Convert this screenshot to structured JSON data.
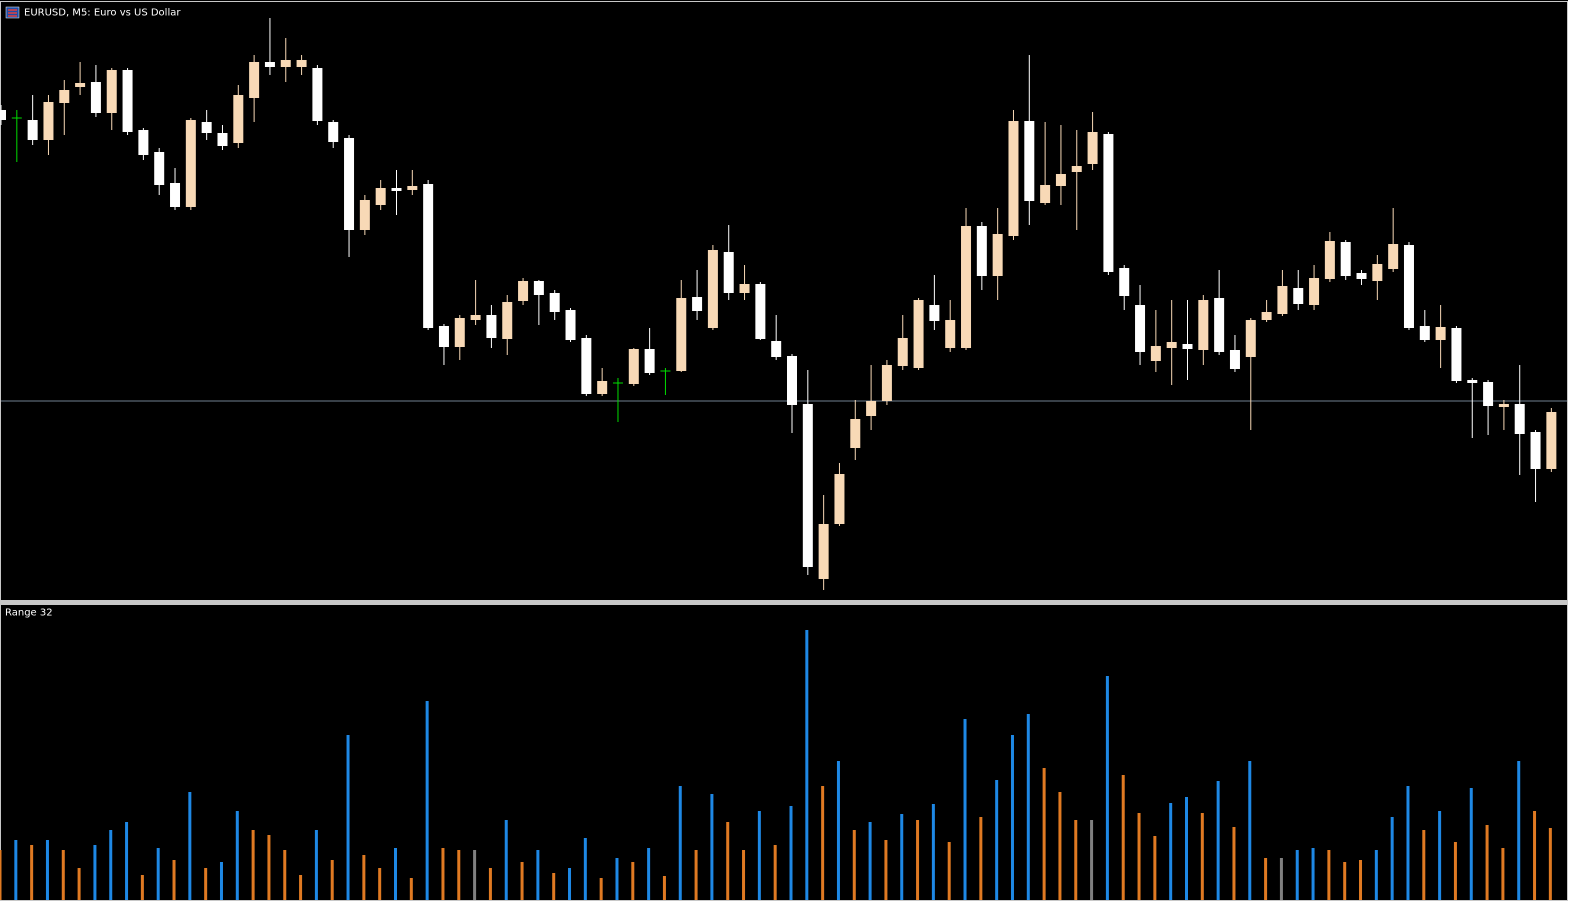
{
  "chart_data": [
    {
      "type": "candlestick",
      "title": "EURUSD, M5:  Euro vs US Dollar",
      "ylim": [
        0,
        600
      ],
      "price_line": 199,
      "bull_color": "#f8d9b6",
      "bear_color": "#ffffff",
      "doji_color": "#00dd00",
      "price_line_color": "#6f7f8f",
      "ohlc": [
        [
          490,
          495,
          475,
          480
        ],
        [
          482,
          490,
          438,
          482
        ],
        [
          480,
          505,
          455,
          460
        ],
        [
          460,
          505,
          445,
          498
        ],
        [
          497,
          520,
          465,
          510
        ],
        [
          513,
          538,
          505,
          517
        ],
        [
          518,
          535,
          483,
          487
        ],
        [
          487,
          532,
          470,
          530
        ],
        [
          530,
          532,
          465,
          468
        ],
        [
          470,
          472,
          440,
          445
        ],
        [
          448,
          452,
          405,
          415
        ],
        [
          417,
          432,
          390,
          393
        ],
        [
          393,
          482,
          390,
          480
        ],
        [
          478,
          490,
          460,
          467
        ],
        [
          467,
          475,
          450,
          454
        ],
        [
          457,
          515,
          452,
          505
        ],
        [
          502,
          545,
          478,
          538
        ],
        [
          538,
          582,
          525,
          533
        ],
        [
          533,
          562,
          518,
          540
        ],
        [
          533,
          545,
          525,
          540
        ],
        [
          532,
          535,
          475,
          479
        ],
        [
          478,
          480,
          452,
          458
        ],
        [
          462,
          465,
          343,
          370
        ],
        [
          370,
          405,
          365,
          400
        ],
        [
          395,
          420,
          390,
          412
        ],
        [
          412,
          430,
          385,
          409
        ],
        [
          410,
          430,
          405,
          414
        ],
        [
          416,
          420,
          270,
          272
        ],
        [
          274,
          276,
          235,
          253
        ],
        [
          253,
          285,
          240,
          282
        ],
        [
          280,
          320,
          275,
          285
        ],
        [
          285,
          295,
          252,
          262
        ],
        [
          261,
          305,
          245,
          298
        ],
        [
          299,
          322,
          295,
          319
        ],
        [
          319,
          320,
          275,
          305
        ],
        [
          307,
          310,
          280,
          288
        ],
        [
          290,
          292,
          258,
          260
        ],
        [
          262,
          265,
          204,
          206
        ],
        [
          206,
          232,
          204,
          219
        ],
        [
          217,
          222,
          178,
          217
        ],
        [
          216,
          252,
          214,
          251
        ],
        [
          251,
          272,
          225,
          227
        ],
        [
          229,
          232,
          205,
          229
        ],
        [
          229,
          320,
          228,
          302
        ],
        [
          303,
          330,
          280,
          289
        ],
        [
          272,
          355,
          270,
          350
        ],
        [
          348,
          375,
          300,
          307
        ],
        [
          307,
          335,
          300,
          316
        ],
        [
          316,
          318,
          260,
          261
        ],
        [
          259,
          285,
          240,
          243
        ],
        [
          244,
          246,
          167,
          195
        ],
        [
          196,
          230,
          25,
          33
        ],
        [
          21,
          105,
          10,
          76
        ],
        [
          76,
          137,
          74,
          126
        ],
        [
          152,
          200,
          140,
          181
        ],
        [
          184,
          235,
          170,
          199
        ],
        [
          199,
          240,
          195,
          235
        ],
        [
          234,
          285,
          230,
          262
        ],
        [
          232,
          302,
          230,
          300
        ],
        [
          295,
          325,
          270,
          279
        ],
        [
          252,
          300,
          248,
          280
        ],
        [
          252,
          392,
          250,
          374
        ],
        [
          374,
          378,
          310,
          324
        ],
        [
          324,
          392,
          300,
          366
        ],
        [
          364,
          490,
          360,
          479
        ],
        [
          479,
          545,
          375,
          399
        ],
        [
          397,
          478,
          395,
          415
        ],
        [
          414,
          475,
          395,
          426
        ],
        [
          428,
          470,
          370,
          434
        ],
        [
          436,
          488,
          430,
          468
        ],
        [
          466,
          468,
          325,
          328
        ],
        [
          332,
          335,
          290,
          304
        ],
        [
          295,
          315,
          235,
          248
        ],
        [
          239,
          290,
          228,
          254
        ],
        [
          252,
          300,
          215,
          258
        ],
        [
          256,
          300,
          220,
          251
        ],
        [
          250,
          305,
          235,
          300
        ],
        [
          302,
          330,
          245,
          248
        ],
        [
          250,
          265,
          228,
          231
        ],
        [
          243,
          282,
          170,
          280
        ],
        [
          280,
          300,
          278,
          288
        ],
        [
          286,
          330,
          284,
          314
        ],
        [
          312,
          330,
          290,
          296
        ],
        [
          295,
          335,
          290,
          322
        ],
        [
          321,
          368,
          318,
          359
        ],
        [
          358,
          360,
          320,
          324
        ],
        [
          327,
          330,
          315,
          321
        ],
        [
          319,
          345,
          300,
          336
        ],
        [
          331,
          392,
          328,
          356
        ],
        [
          355,
          358,
          270,
          272
        ],
        [
          274,
          290,
          258,
          260
        ],
        [
          260,
          295,
          232,
          273
        ],
        [
          272,
          274,
          217,
          219
        ],
        [
          220,
          222,
          162,
          217
        ],
        [
          218,
          220,
          165,
          194
        ],
        [
          193,
          200,
          170,
          196
        ],
        [
          196,
          235,
          125,
          166
        ],
        [
          168,
          170,
          98,
          131
        ],
        [
          131,
          192,
          128,
          188
        ]
      ]
    },
    {
      "type": "bar",
      "title": "Range 32",
      "ylim": [
        0,
        295
      ],
      "values": [
        50,
        60,
        55,
        60,
        50,
        32,
        55,
        70,
        78,
        25,
        52,
        40,
        108,
        32,
        38,
        89,
        70,
        65,
        50,
        25,
        70,
        40,
        165,
        45,
        32,
        52,
        22,
        199,
        52,
        50,
        50,
        32,
        80,
        38,
        50,
        27,
        32,
        62,
        22,
        42,
        38,
        52,
        24,
        114,
        50,
        106,
        78,
        50,
        89,
        55,
        94,
        270,
        114,
        139,
        70,
        78,
        60,
        86,
        80,
        96,
        58,
        181,
        83,
        120,
        165,
        186,
        132,
        108,
        80,
        80,
        224,
        125,
        87,
        64,
        97,
        103,
        87,
        119,
        73,
        139,
        42,
        42,
        50,
        52,
        50,
        38,
        40,
        50,
        83,
        114,
        70,
        89,
        58,
        112,
        75,
        52,
        139,
        89,
        72
      ],
      "colors": [
        "#e07a22",
        "#1e88e5",
        "#e07a22",
        "#1e88e5",
        "#e07a22",
        "#e07a22",
        "#1e88e5",
        "#1e88e5",
        "#1e88e5",
        "#e07a22",
        "#1e88e5",
        "#e07a22",
        "#1e88e5",
        "#e07a22",
        "#1e88e5",
        "#1e88e5",
        "#e07a22",
        "#e07a22",
        "#e07a22",
        "#e07a22",
        "#1e88e5",
        "#e07a22",
        "#1e88e5",
        "#e07a22",
        "#e07a22",
        "#1e88e5",
        "#e07a22",
        "#1e88e5",
        "#e07a22",
        "#e07a22",
        "#808080",
        "#e07a22",
        "#1e88e5",
        "#e07a22",
        "#1e88e5",
        "#e07a22",
        "#1e88e5",
        "#1e88e5",
        "#e07a22",
        "#1e88e5",
        "#e07a22",
        "#1e88e5",
        "#e07a22",
        "#1e88e5",
        "#e07a22",
        "#1e88e5",
        "#e07a22",
        "#e07a22",
        "#1e88e5",
        "#e07a22",
        "#1e88e5",
        "#1e88e5",
        "#e07a22",
        "#1e88e5",
        "#e07a22",
        "#1e88e5",
        "#e07a22",
        "#1e88e5",
        "#e07a22",
        "#1e88e5",
        "#e07a22",
        "#1e88e5",
        "#e07a22",
        "#1e88e5",
        "#1e88e5",
        "#1e88e5",
        "#e07a22",
        "#e07a22",
        "#e07a22",
        "#808080",
        "#1e88e5",
        "#e07a22",
        "#e07a22",
        "#e07a22",
        "#1e88e5",
        "#1e88e5",
        "#e07a22",
        "#1e88e5",
        "#e07a22",
        "#1e88e5",
        "#e07a22",
        "#808080",
        "#1e88e5",
        "#1e88e5",
        "#e07a22",
        "#e07a22",
        "#e07a22",
        "#1e88e5",
        "#1e88e5",
        "#1e88e5",
        "#e07a22",
        "#1e88e5",
        "#e07a22",
        "#1e88e5",
        "#e07a22",
        "#e07a22",
        "#1e88e5",
        "#e07a22",
        "#e07a22"
      ]
    }
  ]
}
